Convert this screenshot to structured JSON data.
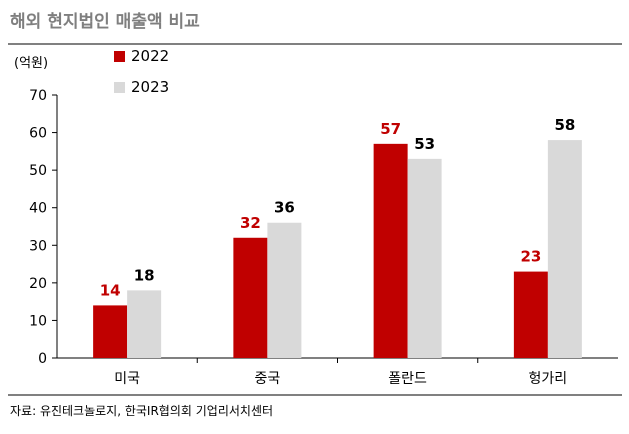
{
  "title": "해외 현지법인 매출액 비교",
  "unit_label": "(억원)",
  "source": "자료: 유진테크놀로지, 한국IR협의회 기업리서치센터",
  "colors": {
    "title": "#7f7f7f",
    "series_2022": "#c00000",
    "series_2023": "#d9d9d9",
    "label_2022": "#c00000",
    "label_2023": "#000000",
    "axis": "#000000",
    "rule": "#000000"
  },
  "chart_data": {
    "type": "bar",
    "categories": [
      "미국",
      "중국",
      "폴란드",
      "헝가리"
    ],
    "series": [
      {
        "name": "2022",
        "values": [
          14,
          32,
          57,
          23
        ]
      },
      {
        "name": "2023",
        "values": [
          18,
          36,
          53,
          58
        ]
      }
    ],
    "ylim": [
      0,
      70
    ],
    "yticks": [
      0,
      10,
      20,
      30,
      40,
      50,
      60,
      70
    ],
    "ylabel": "(억원)",
    "xlabel": "",
    "grid": false,
    "legend_position": "top-left"
  }
}
